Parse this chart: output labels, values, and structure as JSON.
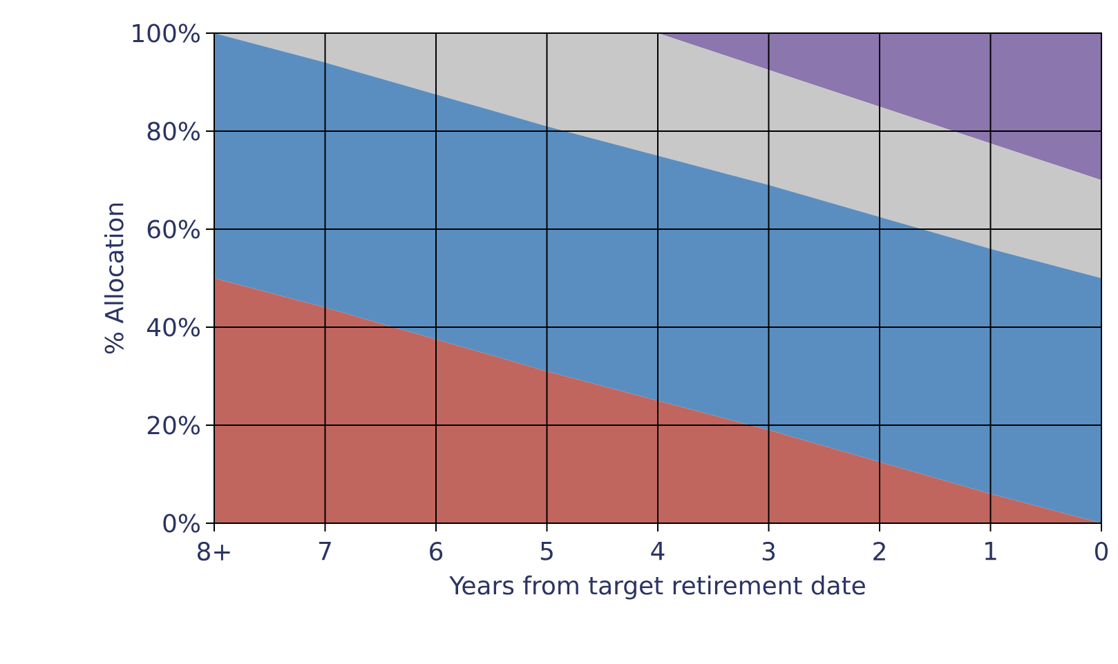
{
  "chart_data": {
    "type": "area",
    "stacked": true,
    "xlabel": "Years from target retirement date",
    "ylabel": "% Allocation",
    "categories": [
      "8+",
      "7",
      "6",
      "5",
      "4",
      "3",
      "2",
      "1",
      "0"
    ],
    "series": [
      {
        "color": "#c0665e",
        "values": [
          50,
          44,
          37.5,
          31,
          25,
          19,
          12.5,
          6,
          0
        ]
      },
      {
        "color": "#5b8ec0",
        "values": [
          50,
          50,
          50,
          50,
          50,
          50,
          50,
          50,
          50
        ]
      },
      {
        "color": "#c8c8c8",
        "values": [
          0,
          6,
          12.5,
          19,
          25,
          23.5,
          22.5,
          21.5,
          20
        ]
      },
      {
        "color": "#8b76ad",
        "values": [
          0,
          0,
          0,
          0,
          0,
          7.5,
          15,
          22.5,
          30
        ]
      }
    ],
    "ylim": [
      0,
      100
    ],
    "yticks": [
      {
        "value": 0,
        "label": "0%"
      },
      {
        "value": 20,
        "label": "20%"
      },
      {
        "value": 40,
        "label": "40%"
      },
      {
        "value": 60,
        "label": "60%"
      },
      {
        "value": 80,
        "label": "80%"
      },
      {
        "value": 100,
        "label": "100%"
      }
    ],
    "grid": true
  }
}
